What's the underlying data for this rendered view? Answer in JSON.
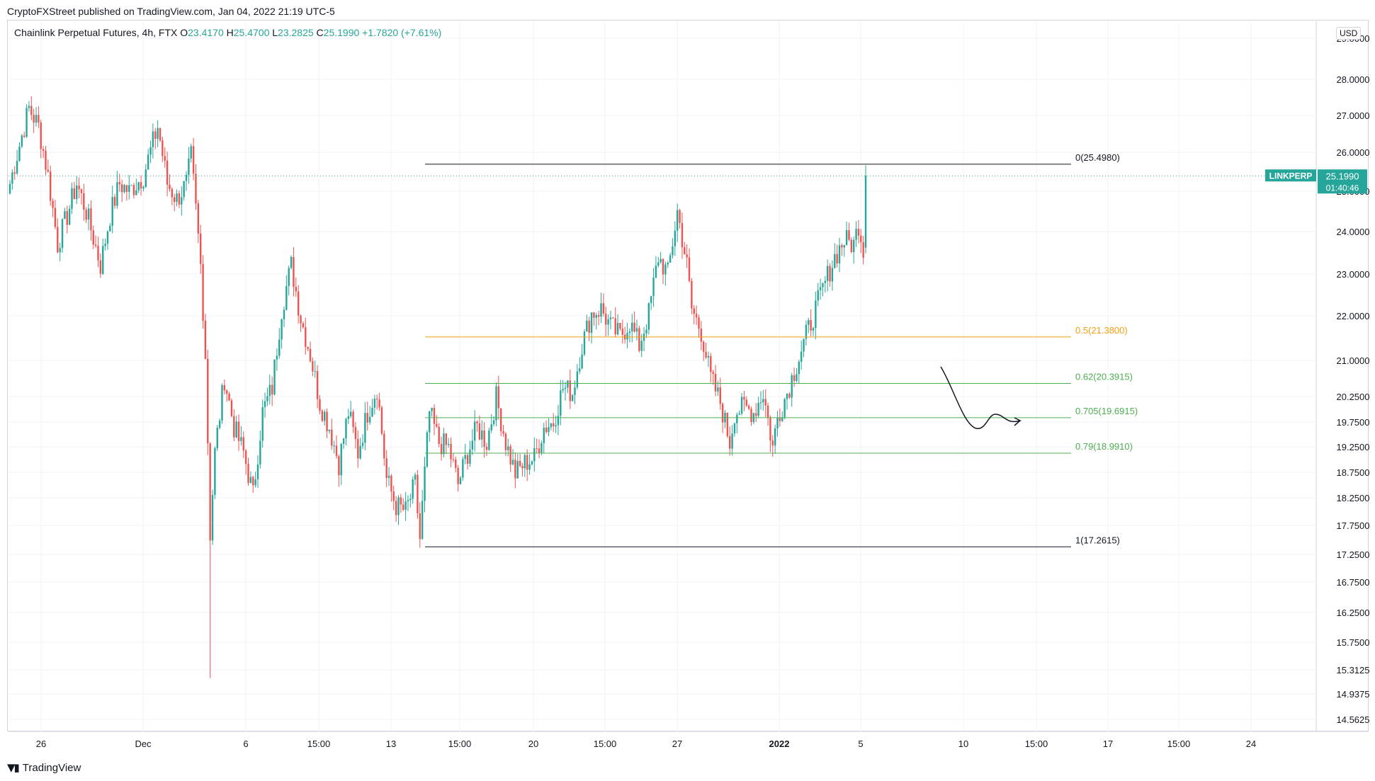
{
  "header": {
    "published": "CryptoFXStreet published on TradingView.com, Jan 04, 2022 21:19 UTC-5"
  },
  "legend": {
    "symbol": "Chainlink Perpetual Futures, 4h, FTX",
    "o_label": "O",
    "o": "23.4170",
    "h_label": "H",
    "h": "25.4700",
    "l_label": "L",
    "l": "23.2825",
    "c_label": "C",
    "c": "25.1990",
    "change": "+1.7820 (+7.61%)"
  },
  "currency": "USD",
  "price_tag": {
    "symbol": "LINKPERP",
    "price": "25.1990",
    "countdown": "01:40:46"
  },
  "footer": {
    "brand": "TradingView"
  },
  "colors": {
    "up": "#26a69a",
    "down": "#ef5350",
    "orange": "#f59f0f",
    "green": "#4caf50",
    "black": "#131722",
    "grid": "#f0f3fa"
  },
  "chart_data": {
    "type": "candlestick",
    "ylim": [
      14.3,
      29.5
    ],
    "last_price": 25.199,
    "y_ticks": [
      "29.0000",
      "28.0000",
      "27.0000",
      "26.0000",
      "25.0000",
      "24.0000",
      "23.0000",
      "22.0000",
      "21.0000",
      "20.2500",
      "19.7500",
      "19.2500",
      "18.7500",
      "18.2500",
      "17.7500",
      "17.2500",
      "16.7500",
      "16.2500",
      "15.7500",
      "15.3125",
      "14.9375",
      "14.5625"
    ],
    "x_ticks": [
      "26",
      "Dec",
      "6",
      "15:00",
      "13",
      "15:00",
      "20",
      "15:00",
      "27",
      "2022",
      "5",
      "10",
      "15:00",
      "17",
      "15:00",
      "24"
    ],
    "fib_levels": [
      {
        "label": "0(25.4980)",
        "value": 25.498,
        "color": "#131722"
      },
      {
        "label": "0.5(21.3800)",
        "value": 21.38,
        "color": "#f59f0f"
      },
      {
        "label": "0.62(20.3915)",
        "value": 20.3915,
        "color": "#4caf50"
      },
      {
        "label": "0.705(19.6915)",
        "value": 19.6915,
        "color": "#4caf50"
      },
      {
        "label": "0.79(18.9910)",
        "value": 18.991,
        "color": "#4caf50"
      },
      {
        "label": "1(17.2615)",
        "value": 17.2615,
        "color": "#131722"
      }
    ],
    "anchors": [
      [
        0,
        25.0
      ],
      [
        4,
        26.0
      ],
      [
        8,
        27.0
      ],
      [
        12,
        26.5
      ],
      [
        16,
        25.2
      ],
      [
        20,
        23.5
      ],
      [
        24,
        24.2
      ],
      [
        28,
        25.0
      ],
      [
        32,
        24.3
      ],
      [
        38,
        23.0
      ],
      [
        42,
        24.2
      ],
      [
        46,
        25.0
      ],
      [
        50,
        24.8
      ],
      [
        56,
        25.2
      ],
      [
        62,
        26.5
      ],
      [
        66,
        25.0
      ],
      [
        70,
        24.6
      ],
      [
        74,
        25.0
      ],
      [
        76,
        25.7
      ],
      [
        80,
        23.0
      ],
      [
        82,
        21.0
      ],
      [
        84,
        17.5
      ],
      [
        86,
        19.0
      ],
      [
        90,
        20.5
      ],
      [
        94,
        19.5
      ],
      [
        98,
        19.0
      ],
      [
        102,
        18.2
      ],
      [
        106,
        19.8
      ],
      [
        110,
        20.3
      ],
      [
        114,
        22.0
      ],
      [
        118,
        23.0
      ],
      [
        122,
        21.8
      ],
      [
        126,
        21.0
      ],
      [
        130,
        20.0
      ],
      [
        134,
        19.5
      ],
      [
        138,
        18.8
      ],
      [
        142,
        19.8
      ],
      [
        146,
        19.0
      ],
      [
        150,
        19.8
      ],
      [
        154,
        20.3
      ],
      [
        158,
        18.5
      ],
      [
        162,
        18.0
      ],
      [
        166,
        17.9
      ],
      [
        170,
        18.4
      ],
      [
        172,
        17.4
      ],
      [
        176,
        19.8
      ],
      [
        180,
        19.2
      ],
      [
        184,
        19.1
      ],
      [
        188,
        18.4
      ],
      [
        192,
        19.0
      ],
      [
        196,
        19.5
      ],
      [
        200,
        19.2
      ],
      [
        204,
        20.1
      ],
      [
        208,
        19.2
      ],
      [
        212,
        18.6
      ],
      [
        216,
        18.8
      ],
      [
        220,
        18.9
      ],
      [
        224,
        19.5
      ],
      [
        228,
        19.6
      ],
      [
        232,
        20.3
      ],
      [
        236,
        20.2
      ],
      [
        240,
        21.2
      ],
      [
        244,
        21.9
      ],
      [
        248,
        22.0
      ],
      [
        252,
        21.6
      ],
      [
        256,
        21.4
      ],
      [
        260,
        21.7
      ],
      [
        264,
        21.2
      ],
      [
        268,
        21.9
      ],
      [
        272,
        23.2
      ],
      [
        276,
        22.8
      ],
      [
        280,
        24.3
      ],
      [
        284,
        23.0
      ],
      [
        286,
        22.0
      ],
      [
        290,
        21.5
      ],
      [
        294,
        20.5
      ],
      [
        298,
        20.0
      ],
      [
        302,
        19.2
      ],
      [
        304,
        19.8
      ],
      [
        308,
        19.9
      ],
      [
        312,
        19.8
      ],
      [
        316,
        20.2
      ],
      [
        320,
        19.1
      ],
      [
        322,
        19.7
      ],
      [
        326,
        20.2
      ],
      [
        330,
        20.8
      ],
      [
        334,
        21.4
      ],
      [
        338,
        22.0
      ],
      [
        342,
        22.6
      ],
      [
        346,
        23.2
      ],
      [
        350,
        23.6
      ],
      [
        354,
        23.5
      ],
      [
        356,
        24.0
      ],
      [
        358,
        23.4
      ],
      [
        359,
        25.199
      ]
    ],
    "price_range": [
      14.3,
      29.5
    ],
    "candle_count": 360
  }
}
